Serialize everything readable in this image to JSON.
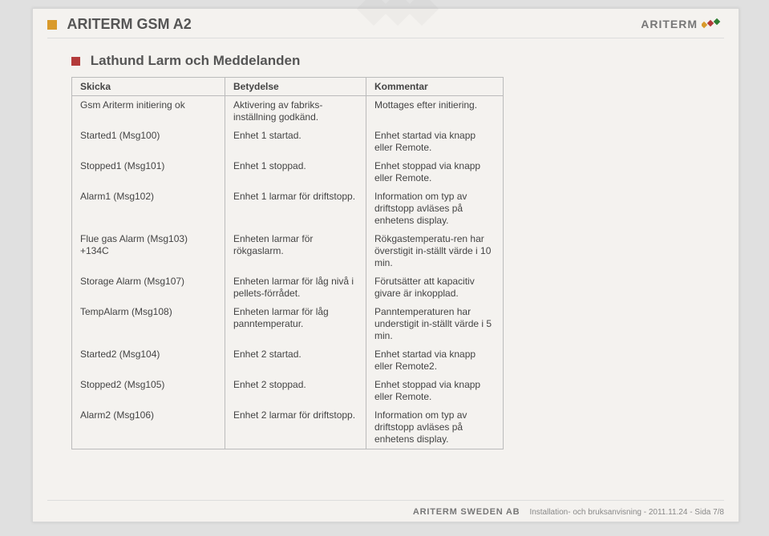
{
  "header": {
    "doc_title": "ARITERM GSM A2",
    "brand": "ARITERM"
  },
  "section": {
    "title": "Lathund Larm och Meddelanden"
  },
  "columns": {
    "c1": "Skicka",
    "c2": "Betydelse",
    "c3": "Kommentar"
  },
  "rows": [
    {
      "skicka": "Gsm Ariterm initiering ok",
      "betydelse": "Aktivering av fabriks-inställning godkänd.",
      "kommentar": "Mottages efter initiering."
    },
    {
      "skicka": "Started1 (Msg100)",
      "betydelse": "Enhet 1 startad.",
      "kommentar": "Enhet startad via knapp eller Remote."
    },
    {
      "skicka": "Stopped1 (Msg101)",
      "betydelse": "Enhet 1 stoppad.",
      "kommentar": "Enhet stoppad via knapp eller Remote."
    },
    {
      "skicka": "Alarm1 (Msg102)",
      "betydelse": "Enhet 1 larmar för driftstopp.",
      "kommentar": "Information om typ av driftstopp avläses på enhetens display."
    },
    {
      "skicka": "Flue gas Alarm (Msg103) +134C",
      "betydelse": "Enheten larmar för rökgaslarm.",
      "kommentar": "Rökgastemperatu-ren har överstigit in-ställt värde i 10 min."
    },
    {
      "skicka": "Storage Alarm (Msg107)",
      "betydelse": "Enheten larmar för låg nivå i pellets-förrådet.",
      "kommentar": "Förutsätter att kapacitiv givare är inkopplad."
    },
    {
      "skicka": "TempAlarm (Msg108)",
      "betydelse": "Enheten larmar för låg panntemperatur.",
      "kommentar": "Panntemperaturen har understigit in-ställt värde i 5 min."
    },
    {
      "skicka": "Started2 (Msg104)",
      "betydelse": "Enhet 2 startad.",
      "kommentar": "Enhet startad via knapp eller Remote2."
    },
    {
      "skicka": "Stopped2 (Msg105)",
      "betydelse": "Enhet 2 stoppad.",
      "kommentar": "Enhet stoppad via knapp eller Remote."
    },
    {
      "skicka": "Alarm2 (Msg106)",
      "betydelse": "Enhet 2 larmar för driftstopp.",
      "kommentar": "Information om typ av driftstopp avläses på enhetens display."
    }
  ],
  "footer": {
    "company": "ARITERM SWEDEN AB",
    "pageinfo": "Installation- och bruksanvisning - 2011.11.24 - Sida 7/8"
  },
  "colors": {
    "bullet_orange": "#d99a2b",
    "bullet_red": "#b33a3a",
    "text_gray": "#555555",
    "border": "#bbbbbb",
    "page_bg": "#f4f2ef"
  }
}
